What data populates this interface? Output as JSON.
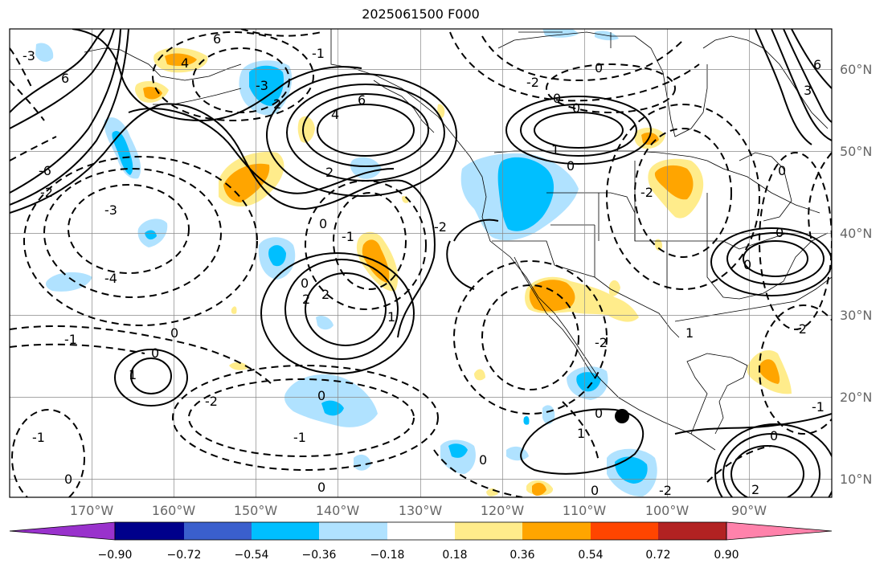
{
  "title": "2025061500 F000",
  "lat_labels": [
    "60°N",
    "50°N",
    "40°N",
    "30°N",
    "20°N",
    "10°N"
  ],
  "lon_labels": [
    "170°W",
    "160°W",
    "150°W",
    "140°W",
    "130°W",
    "120°W",
    "110°W",
    "100°W",
    "90°W"
  ],
  "colorbar": {
    "colors": [
      "#9932cc",
      "#00008b",
      "#3a5fcd",
      "#00bfff",
      "#b0e2ff",
      "#ffffff",
      "#ffec8b",
      "#ffa500",
      "#ff4500",
      "#b22222",
      "#ff82ab"
    ],
    "tick_labels": [
      "−0.90",
      "−0.72",
      "−0.54",
      "−0.36",
      "−0.18",
      "0.18",
      "0.36",
      "0.54",
      "0.72",
      "0.90"
    ]
  },
  "contour_labels": [
    "6",
    "4",
    "2",
    "0",
    "-1",
    "-2",
    "-3",
    "-4",
    "-6",
    "1",
    "2",
    "0",
    "1",
    "-1",
    "-2",
    "0",
    "2",
    "4",
    "6",
    "2",
    "3",
    "0",
    "2",
    "-2",
    "0",
    "1",
    "-1"
  ],
  "map_extent": {
    "lon_min": -180,
    "lon_max": -80,
    "lat_min": 8,
    "lat_max": 65
  },
  "storm_marker": {
    "lon": -105,
    "lat": 17.5
  }
}
